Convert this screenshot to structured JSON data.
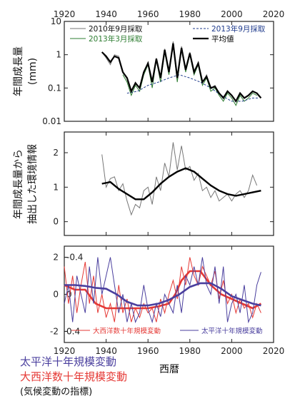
{
  "chart_data": [
    {
      "type": "line",
      "xlim": [
        1920,
        2020
      ],
      "yscale": "log",
      "ylim": [
        0.01,
        10
      ],
      "x_ticks": [
        "1920",
        "1940",
        "1960",
        "1980",
        "2000",
        "2020"
      ],
      "y_ticks": [
        "0.01",
        "0.1",
        "1",
        "10"
      ],
      "ylabel": "年間成長量\n(mm)",
      "legend": "top-right",
      "series": [
        {
          "name": "2010年9月採取",
          "color": "#777777",
          "style": "solid",
          "x": [
            1938,
            1940,
            1942,
            1944,
            1946,
            1948,
            1950,
            1952,
            1954,
            1956,
            1958,
            1960,
            1962,
            1964,
            1966,
            1968,
            1970,
            1972,
            1974,
            1976,
            1978,
            1980,
            1982,
            1984,
            1986,
            1988,
            1990,
            1992,
            1994,
            1996,
            1998,
            2000,
            2002,
            2004,
            2006,
            2008,
            2010
          ],
          "y": [
            1.2,
            0.8,
            0.5,
            1.0,
            0.9,
            0.3,
            0.2,
            0.08,
            0.15,
            0.1,
            0.3,
            0.6,
            0.15,
            0.8,
            0.2,
            1.5,
            0.3,
            2.5,
            0.2,
            1.8,
            0.4,
            1.2,
            0.3,
            0.6,
            0.15,
            0.25,
            0.1,
            0.12,
            0.07,
            0.05,
            0.08,
            0.06,
            0.04,
            0.07,
            0.05,
            0.06,
            0.08
          ]
        },
        {
          "name": "2013年3月採取",
          "color": "#2e7d32",
          "style": "solid",
          "x": [
            1948,
            1950,
            1952,
            1954,
            1956,
            1958,
            1960,
            1962,
            1964,
            1966,
            1968,
            1970,
            1972,
            1974,
            1976,
            1978,
            1980,
            1982,
            1984,
            1986,
            1988,
            1990,
            1992,
            1994,
            1996,
            1998,
            2000,
            2002,
            2004,
            2006,
            2008,
            2010,
            2012
          ],
          "y": [
            0.25,
            0.15,
            0.06,
            0.12,
            0.08,
            0.25,
            0.5,
            0.1,
            0.7,
            0.15,
            1.2,
            0.25,
            2.0,
            0.15,
            1.5,
            0.3,
            1.0,
            0.25,
            0.5,
            0.12,
            0.2,
            0.08,
            0.1,
            0.06,
            0.04,
            0.07,
            0.05,
            0.03,
            0.06,
            0.04,
            0.05,
            0.07,
            0.06
          ]
        },
        {
          "name": "2013年9月採取",
          "color": "#1f3b8c",
          "style": "dashed",
          "x": [
            1950,
            1955,
            1960,
            1965,
            1970,
            1975,
            1980,
            1985,
            1990,
            1995,
            2000,
            2005,
            2010,
            2013
          ],
          "y": [
            0.07,
            0.08,
            0.12,
            0.15,
            0.2,
            0.25,
            0.2,
            0.15,
            0.1,
            0.06,
            0.04,
            0.04,
            0.05,
            0.05
          ]
        },
        {
          "name": "平均値",
          "color": "#000000",
          "style": "solid",
          "x": [
            1938,
            1940,
            1942,
            1944,
            1946,
            1948,
            1950,
            1952,
            1954,
            1956,
            1958,
            1960,
            1962,
            1964,
            1966,
            1968,
            1970,
            1972,
            1974,
            1976,
            1978,
            1980,
            1982,
            1984,
            1986,
            1988,
            1990,
            1992,
            1994,
            1996,
            1998,
            2000,
            2002,
            2004,
            2006,
            2008,
            2010,
            2012,
            2014
          ],
          "y": [
            1.2,
            0.9,
            0.6,
            0.9,
            0.8,
            0.3,
            0.2,
            0.08,
            0.14,
            0.1,
            0.3,
            0.55,
            0.15,
            0.75,
            0.2,
            1.4,
            0.3,
            2.2,
            0.2,
            1.6,
            0.35,
            1.1,
            0.3,
            0.55,
            0.15,
            0.22,
            0.1,
            0.11,
            0.07,
            0.05,
            0.08,
            0.06,
            0.04,
            0.07,
            0.05,
            0.06,
            0.08,
            0.07,
            0.05
          ]
        }
      ]
    },
    {
      "type": "line",
      "xlim": [
        1920,
        2020
      ],
      "ylim": [
        -0.4,
        2.6
      ],
      "x_ticks": [
        "1920",
        "1940",
        "1960",
        "1980",
        "2000",
        "2020"
      ],
      "y_ticks": [
        "0",
        "1",
        "2"
      ],
      "ylabel": "年間成長量から\n抽出した環境情報",
      "series": [
        {
          "name": "",
          "color": "#777777",
          "style": "solid",
          "x": [
            1938,
            1940,
            1942,
            1944,
            1946,
            1948,
            1950,
            1952,
            1954,
            1956,
            1958,
            1960,
            1962,
            1964,
            1966,
            1968,
            1970,
            1972,
            1974,
            1976,
            1978,
            1980,
            1982,
            1984,
            1986,
            1988,
            1990,
            1992,
            1994,
            1996,
            1998,
            2000,
            2002,
            2004,
            2006,
            2008,
            2010,
            2012
          ],
          "y": [
            1.95,
            1.0,
            1.25,
            1.3,
            0.9,
            1.1,
            0.6,
            0.2,
            0.5,
            0.4,
            0.9,
            1.0,
            0.5,
            1.3,
            0.9,
            1.7,
            1.3,
            2.3,
            1.5,
            2.2,
            1.5,
            1.6,
            1.2,
            1.4,
            0.9,
            1.0,
            0.7,
            0.9,
            0.6,
            0.7,
            0.8,
            0.6,
            0.8,
            0.9,
            0.7,
            0.9,
            1.35,
            1.05
          ]
        },
        {
          "name": "",
          "color": "#000000",
          "style": "solid",
          "x": [
            1938,
            1942,
            1946,
            1950,
            1954,
            1958,
            1962,
            1966,
            1970,
            1974,
            1978,
            1982,
            1986,
            1990,
            1994,
            1998,
            2002,
            2006,
            2010,
            2014
          ],
          "y": [
            1.1,
            1.15,
            0.95,
            0.8,
            0.65,
            0.65,
            0.85,
            1.1,
            1.3,
            1.45,
            1.55,
            1.45,
            1.25,
            1.05,
            0.9,
            0.8,
            0.75,
            0.8,
            0.85,
            0.9
          ]
        }
      ]
    },
    {
      "type": "line",
      "xlim": [
        1920,
        2020
      ],
      "ylim": [
        -2.6,
        2.6
      ],
      "x_ticks": [
        "1920",
        "1940",
        "1960",
        "1980",
        "2000",
        "2020"
      ],
      "xlabel": "西暦",
      "y_ticks_left": [
        "2",
        "0",
        "-2"
      ],
      "y_ticks_right_inside": [
        "-0.4",
        "0",
        "0.4"
      ],
      "legend": "bottom",
      "series": [
        {
          "name": "大西洋数十年規模変動",
          "color": "#e53935",
          "style": "solid",
          "axis": "right-inverted",
          "x": [
            1920,
            1922,
            1924,
            1926,
            1928,
            1930,
            1932,
            1934,
            1936,
            1938,
            1940,
            1942,
            1944,
            1946,
            1948,
            1950,
            1952,
            1954,
            1956,
            1958,
            1960,
            1962,
            1964,
            1966,
            1968,
            1970,
            1972,
            1974,
            1976,
            1978,
            1980,
            1982,
            1984,
            1986,
            1988,
            1990,
            1992,
            1994,
            1996,
            1998,
            2000,
            2002,
            2004,
            2006,
            2008,
            2010,
            2012,
            2014
          ],
          "y": [
            -0.3,
            0.1,
            -0.2,
            0.2,
            -0.1,
            -0.35,
            0.1,
            -0.2,
            0.2,
            0.0,
            0.25,
            0.1,
            0.3,
            -0.1,
            0.2,
            0.05,
            0.3,
            0.15,
            0.25,
            0.1,
            0.2,
            0.15,
            0.3,
            0.05,
            0.2,
            0.0,
            -0.15,
            0.05,
            -0.3,
            -0.1,
            -0.4,
            -0.2,
            -0.1,
            -0.3,
            -0.2,
            -0.1,
            -0.25,
            0.05,
            -0.15,
            0.1,
            0.0,
            0.2,
            0.05,
            0.15,
            0.1,
            0.25,
            0.1,
            0.2
          ]
        },
        {
          "name": "",
          "color": "#e53935",
          "style": "solid",
          "axis": "right-inverted",
          "x": [
            1920,
            1925,
            1930,
            1935,
            1940,
            1945,
            1950,
            1955,
            1960,
            1965,
            1970,
            1973,
            1976,
            1980,
            1985,
            1990,
            1995,
            2000,
            2005,
            2010,
            2014
          ],
          "y": [
            -0.1,
            -0.05,
            -0.05,
            0.1,
            0.15,
            0.15,
            0.15,
            0.15,
            0.15,
            0.13,
            0.1,
            0.0,
            -0.15,
            -0.25,
            -0.25,
            -0.1,
            0.0,
            0.05,
            0.1,
            0.15,
            0.1
          ]
        },
        {
          "name": "太平洋十年規模変動",
          "color": "#4a3f9e",
          "style": "solid",
          "axis": "left",
          "x": [
            1920,
            1922,
            1924,
            1926,
            1928,
            1930,
            1932,
            1934,
            1936,
            1938,
            1940,
            1942,
            1944,
            1946,
            1948,
            1950,
            1952,
            1954,
            1956,
            1958,
            1960,
            1962,
            1964,
            1966,
            1968,
            1970,
            1972,
            1974,
            1976,
            1978,
            1980,
            1982,
            1984,
            1986,
            1988,
            1990,
            1992,
            1994,
            1996,
            1998,
            2000,
            2002,
            2004,
            2006,
            2008,
            2010,
            2012,
            2014
          ],
          "y": [
            -0.5,
            0.5,
            -1.5,
            1.0,
            0.0,
            -1.0,
            1.5,
            -0.5,
            2.0,
            0.0,
            1.0,
            2.0,
            0.5,
            -1.0,
            0.0,
            -1.5,
            -0.5,
            -1.5,
            -1.0,
            0.5,
            -0.8,
            -1.5,
            -0.5,
            -1.2,
            0.0,
            -0.5,
            -1.0,
            0.5,
            -1.0,
            1.0,
            0.5,
            1.5,
            0.5,
            2.0,
            0.5,
            0.0,
            1.5,
            -0.5,
            1.5,
            -1.5,
            -0.5,
            0.0,
            -1.0,
            0.5,
            -1.5,
            -1.0,
            0.5,
            1.2
          ]
        },
        {
          "name": "",
          "color": "#4a3f9e",
          "style": "solid",
          "axis": "left",
          "x": [
            1920,
            1925,
            1930,
            1935,
            1940,
            1945,
            1950,
            1955,
            1960,
            1965,
            1970,
            1975,
            1980,
            1985,
            1990,
            1995,
            2000,
            2005,
            2010,
            2014
          ],
          "y": [
            0.5,
            0.5,
            0.45,
            0.35,
            0.3,
            0.0,
            -0.4,
            -0.6,
            -0.6,
            -0.5,
            -0.3,
            0.0,
            0.4,
            0.6,
            0.6,
            0.3,
            -0.1,
            -0.3,
            -0.5,
            -0.6
          ]
        }
      ]
    }
  ],
  "caption": {
    "line1": "太平洋十年規模変動",
    "line2": "大西洋数十年規模変動",
    "line3": "(気候変動の指標)",
    "color1": "#4a3f9e",
    "color2": "#e53935",
    "color3": "#111111"
  }
}
